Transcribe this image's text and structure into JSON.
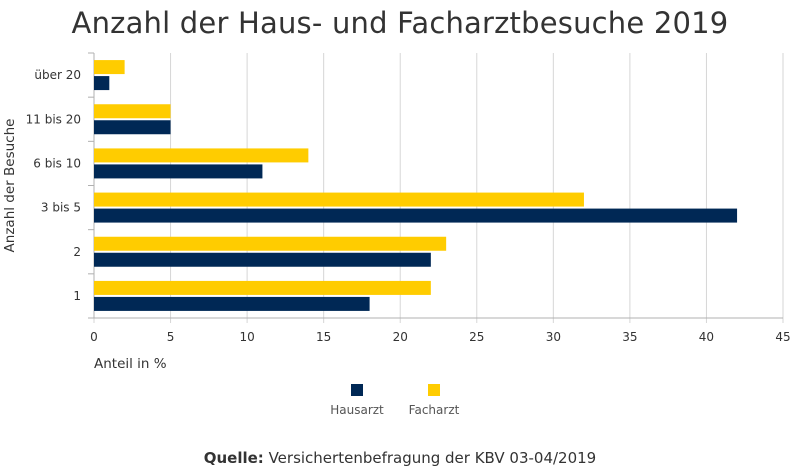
{
  "chart_data": {
    "type": "bar",
    "orientation": "horizontal",
    "title": "Anzahl der Haus- und Facharztbesuche 2019",
    "xlabel": "Anteil in %",
    "ylabel": "Anzahl der Besuche",
    "categories": [
      "über 20",
      "11 bis 20",
      "6 bis 10",
      "3 bis 5",
      "2",
      "1"
    ],
    "series": [
      {
        "name": "Facharzt",
        "color": "#FFCC00",
        "values": [
          2,
          5,
          14,
          32,
          23,
          22
        ]
      },
      {
        "name": "Hausarzt",
        "color": "#002855",
        "values": [
          1,
          5,
          11,
          42,
          22,
          18
        ]
      }
    ],
    "xlim": [
      0,
      45
    ],
    "xticks": [
      0,
      5,
      10,
      15,
      20,
      25,
      30,
      35,
      40,
      45
    ],
    "grid": true,
    "legend_order": [
      "Hausarzt",
      "Facharzt"
    ],
    "legend_placement": "bottom-center"
  },
  "source": {
    "label": "Quelle:",
    "text": " Versichertenbefragung der KBV 03-04/2019"
  }
}
